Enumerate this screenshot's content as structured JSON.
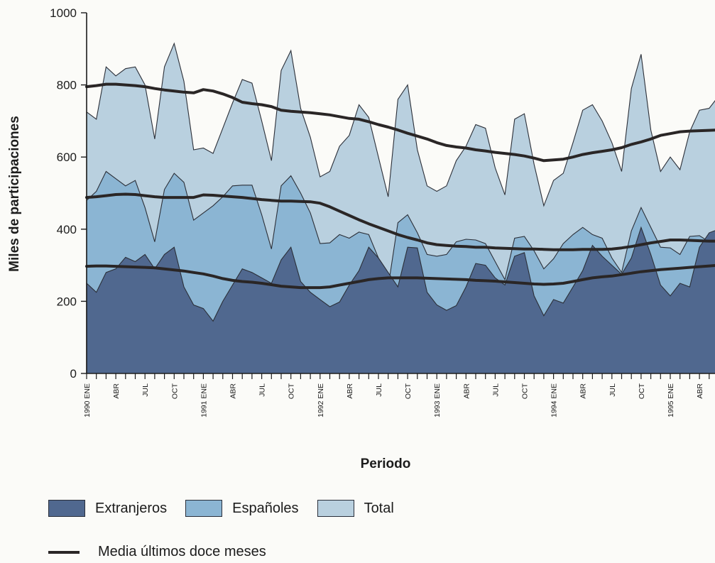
{
  "chart_data": {
    "type": "area",
    "xlabel": "Periodo",
    "ylabel": "Miles de participaciones",
    "ylim": [
      0,
      1000
    ],
    "yticks": [
      0,
      200,
      400,
      600,
      800,
      1000
    ],
    "x_start": "1990 ENE",
    "xtick_labels": [
      {
        "index": 0,
        "label": "1990 ENE"
      },
      {
        "index": 3,
        "label": "ABR"
      },
      {
        "index": 6,
        "label": "JUL"
      },
      {
        "index": 9,
        "label": "OCT"
      },
      {
        "index": 12,
        "label": "1991 ENE"
      },
      {
        "index": 15,
        "label": "ABR"
      },
      {
        "index": 18,
        "label": "JUL"
      },
      {
        "index": 21,
        "label": "OCT"
      },
      {
        "index": 24,
        "label": "1992 ENE"
      },
      {
        "index": 27,
        "label": "ABR"
      },
      {
        "index": 30,
        "label": "JUL"
      },
      {
        "index": 33,
        "label": "OCT"
      },
      {
        "index": 36,
        "label": "1993 ENE"
      },
      {
        "index": 39,
        "label": "ABR"
      },
      {
        "index": 42,
        "label": "JUL"
      },
      {
        "index": 45,
        "label": "OCT"
      },
      {
        "index": 48,
        "label": "1994 ENE"
      },
      {
        "index": 51,
        "label": "ABR"
      },
      {
        "index": 54,
        "label": "JUL"
      },
      {
        "index": 57,
        "label": "OCT"
      },
      {
        "index": 60,
        "label": "1995 ENE"
      },
      {
        "index": 63,
        "label": "ABR"
      }
    ],
    "series": [
      {
        "name": "Total",
        "kind": "area",
        "color": "#b9d0df",
        "values": [
          725,
          705,
          850,
          825,
          845,
          850,
          800,
          650,
          850,
          915,
          810,
          620,
          625,
          610,
          680,
          750,
          815,
          805,
          700,
          590,
          840,
          895,
          735,
          655,
          545,
          560,
          630,
          660,
          745,
          710,
          600,
          490,
          760,
          800,
          620,
          520,
          505,
          520,
          590,
          630,
          690,
          680,
          570,
          495,
          705,
          720,
          580,
          465,
          535,
          555,
          640,
          730,
          745,
          700,
          640,
          560,
          790,
          885,
          675,
          560,
          600,
          565,
          670,
          730,
          735,
          770
        ]
      },
      {
        "name": "Españoles",
        "kind": "area",
        "color": "#8bb5d3",
        "values": [
          480,
          505,
          560,
          540,
          520,
          535,
          460,
          365,
          510,
          555,
          530,
          425,
          445,
          465,
          490,
          520,
          522,
          522,
          440,
          345,
          520,
          548,
          500,
          445,
          360,
          362,
          385,
          375,
          392,
          385,
          320,
          240,
          418,
          440,
          390,
          330,
          325,
          330,
          365,
          372,
          370,
          360,
          310,
          260,
          375,
          380,
          340,
          290,
          318,
          360,
          385,
          405,
          385,
          375,
          320,
          280,
          395,
          460,
          405,
          350,
          348,
          330,
          380,
          382,
          365,
          385
        ]
      },
      {
        "name": "Extranjeros",
        "kind": "area",
        "color": "#50688f",
        "values": [
          250,
          225,
          280,
          290,
          322,
          310,
          330,
          290,
          330,
          350,
          240,
          190,
          180,
          145,
          200,
          245,
          290,
          280,
          265,
          250,
          315,
          350,
          255,
          225,
          205,
          185,
          198,
          245,
          285,
          350,
          320,
          280,
          240,
          350,
          348,
          225,
          190,
          175,
          188,
          240,
          305,
          300,
          265,
          245,
          325,
          335,
          215,
          160,
          205,
          195,
          240,
          285,
          355,
          325,
          300,
          275,
          320,
          405,
          330,
          245,
          215,
          250,
          240,
          350,
          390,
          400
        ]
      },
      {
        "name": "Media últimos doce meses",
        "kind": "line",
        "color": "#2a2626",
        "lines": [
          [
            795,
            798,
            802,
            802,
            800,
            798,
            795,
            790,
            786,
            783,
            780,
            778,
            787,
            783,
            775,
            765,
            752,
            748,
            745,
            740,
            730,
            727,
            725,
            723,
            720,
            717,
            712,
            707,
            705,
            698,
            690,
            683,
            675,
            666,
            658,
            650,
            640,
            632,
            628,
            625,
            620,
            617,
            613,
            610,
            607,
            603,
            597,
            590,
            592,
            594,
            600,
            607,
            612,
            616,
            620,
            626,
            635,
            642,
            650,
            660,
            665,
            670,
            672,
            673,
            674,
            675
          ],
          [
            488,
            490,
            493,
            496,
            497,
            496,
            493,
            490,
            488,
            488,
            488,
            488,
            495,
            494,
            492,
            490,
            488,
            485,
            482,
            480,
            478,
            478,
            477,
            476,
            472,
            462,
            450,
            438,
            426,
            415,
            405,
            395,
            385,
            377,
            370,
            362,
            357,
            355,
            353,
            352,
            350,
            350,
            348,
            347,
            346,
            345,
            345,
            344,
            343,
            343,
            343,
            344,
            344,
            344,
            345,
            348,
            352,
            357,
            362,
            366,
            370,
            370,
            369,
            368,
            367,
            367
          ],
          [
            297,
            298,
            298,
            297,
            296,
            295,
            294,
            293,
            290,
            287,
            284,
            280,
            276,
            270,
            263,
            258,
            255,
            253,
            250,
            246,
            242,
            240,
            238,
            238,
            238,
            240,
            245,
            250,
            255,
            260,
            263,
            265,
            265,
            265,
            265,
            264,
            263,
            262,
            261,
            260,
            258,
            257,
            256,
            254,
            252,
            250,
            248,
            247,
            248,
            250,
            255,
            260,
            265,
            268,
            270,
            274,
            278,
            282,
            285,
            288,
            290,
            292,
            294,
            296,
            298,
            300
          ]
        ]
      }
    ]
  },
  "legend": {
    "items": [
      {
        "label": "Extranjeros",
        "color": "#50688f"
      },
      {
        "label": "Españoles",
        "color": "#8bb5d3"
      },
      {
        "label": "Total",
        "color": "#b9d0df"
      }
    ],
    "line_label": "Media últimos doce meses"
  }
}
